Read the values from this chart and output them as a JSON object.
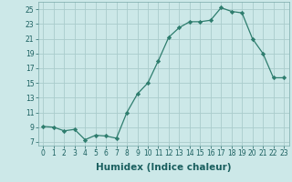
{
  "x": [
    0,
    1,
    2,
    3,
    4,
    5,
    6,
    7,
    8,
    9,
    10,
    11,
    12,
    13,
    14,
    15,
    16,
    17,
    18,
    19,
    20,
    21,
    22,
    23
  ],
  "y": [
    9.1,
    9.0,
    8.5,
    8.7,
    7.3,
    7.9,
    7.8,
    7.5,
    11.0,
    13.5,
    15.0,
    18.0,
    21.2,
    22.5,
    23.3,
    23.3,
    23.5,
    25.2,
    24.7,
    24.5,
    21.0,
    19.0,
    15.7,
    15.7
  ],
  "line_color": "#2e7d6e",
  "marker": "D",
  "marker_size": 2.2,
  "bg_color": "#cce8e8",
  "grid_color": "#aacccc",
  "xlabel": "Humidex (Indice chaleur)",
  "xlim": [
    -0.5,
    23.5
  ],
  "ylim": [
    6.5,
    26.0
  ],
  "yticks": [
    7,
    9,
    11,
    13,
    15,
    17,
    19,
    21,
    23,
    25
  ],
  "xticks": [
    0,
    1,
    2,
    3,
    4,
    5,
    6,
    7,
    8,
    9,
    10,
    11,
    12,
    13,
    14,
    15,
    16,
    17,
    18,
    19,
    20,
    21,
    22,
    23
  ],
  "xtick_labels": [
    "0",
    "1",
    "2",
    "3",
    "4",
    "5",
    "6",
    "7",
    "8",
    "9",
    "10",
    "11",
    "12",
    "13",
    "14",
    "15",
    "16",
    "17",
    "18",
    "19",
    "20",
    "21",
    "22",
    "23"
  ],
  "ytick_labels": [
    "7",
    "9",
    "11",
    "13",
    "15",
    "17",
    "19",
    "21",
    "23",
    "25"
  ],
  "tick_fontsize": 5.5,
  "xlabel_fontsize": 7.5
}
